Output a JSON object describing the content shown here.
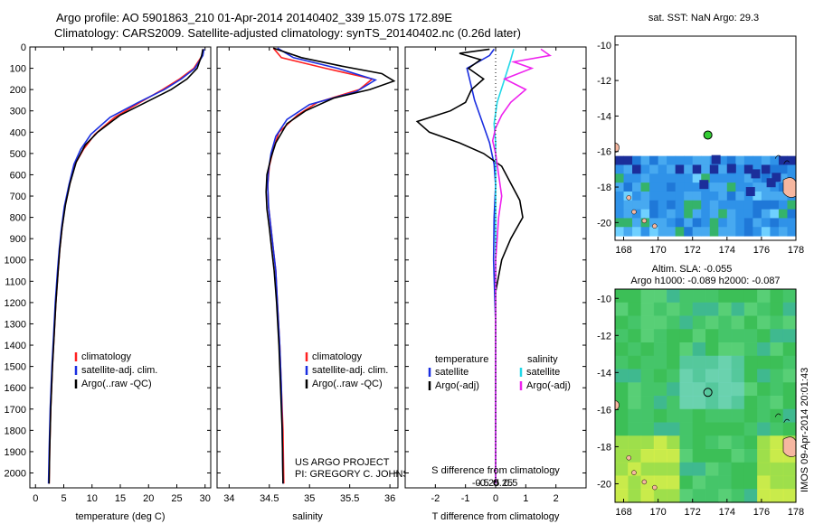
{
  "header": {
    "line1": "Argo profile: AO 5901863_210 01-Apr-2014 20140402_339 15.07S 172.89E",
    "line2": "Climatology: CARS2009. Satellite-adjusted climatology: synTS_20140402.nc (0.26d later)"
  },
  "colors": {
    "clim": "#ff2020",
    "sat": "#1a2ee0",
    "argo": "#000000",
    "sal_sat": "#22d8e8",
    "sal_argo": "#ee22ee",
    "sst_ocean": "#2f92e8",
    "land": "#f6b7a0"
  },
  "chart_data": [
    {
      "type": "line",
      "id": "temperature",
      "xlabel": "temperature (deg C)",
      "xlim": [
        -1,
        31
      ],
      "xticks": [
        0,
        5,
        10,
        15,
        20,
        25,
        30
      ],
      "ylim": [
        2070,
        0
      ],
      "yticks": [
        0,
        100,
        200,
        300,
        400,
        500,
        600,
        700,
        800,
        900,
        1000,
        1100,
        1200,
        1300,
        1400,
        1500,
        1600,
        1700,
        1800,
        1900,
        2000
      ],
      "series": [
        {
          "name": "climatology",
          "color": "#ff2020",
          "points": [
            [
              29.7,
              10
            ],
            [
              29.5,
              40
            ],
            [
              28.0,
              100
            ],
            [
              25.5,
              150
            ],
            [
              22.5,
              200
            ],
            [
              18.5,
              260
            ],
            [
              14.0,
              330
            ],
            [
              10.5,
              410
            ],
            [
              8.5,
              480
            ],
            [
              7.0,
              550
            ],
            [
              6.0,
              650
            ],
            [
              5.2,
              750
            ],
            [
              4.7,
              850
            ],
            [
              4.3,
              950
            ],
            [
              4.0,
              1050
            ],
            [
              3.6,
              1200
            ],
            [
              3.3,
              1350
            ],
            [
              3.0,
              1500
            ],
            [
              2.7,
              1700
            ],
            [
              2.5,
              1900
            ],
            [
              2.4,
              2050
            ]
          ]
        },
        {
          "name": "satellite-adj. clim.",
          "color": "#1a2ee0",
          "points": [
            [
              29.8,
              10
            ],
            [
              29.6,
              40
            ],
            [
              28.2,
              100
            ],
            [
              25.8,
              150
            ],
            [
              22.8,
              200
            ],
            [
              18.2,
              260
            ],
            [
              13.2,
              330
            ],
            [
              9.8,
              410
            ],
            [
              8.0,
              480
            ],
            [
              6.8,
              550
            ],
            [
              5.9,
              650
            ],
            [
              5.1,
              750
            ],
            [
              4.6,
              850
            ],
            [
              4.2,
              950
            ],
            [
              3.9,
              1050
            ],
            [
              3.5,
              1200
            ],
            [
              3.2,
              1350
            ],
            [
              2.9,
              1500
            ],
            [
              2.6,
              1700
            ],
            [
              2.4,
              1900
            ],
            [
              2.3,
              2050
            ]
          ]
        },
        {
          "name": "Argo(..raw -QC)",
          "color": "#000000",
          "points": [
            [
              29.6,
              10
            ],
            [
              29.4,
              40
            ],
            [
              28.6,
              100
            ],
            [
              26.8,
              150
            ],
            [
              24.0,
              200
            ],
            [
              19.5,
              260
            ],
            [
              15.0,
              320
            ],
            [
              11.0,
              400
            ],
            [
              8.8,
              460
            ],
            [
              7.2,
              540
            ],
            [
              6.1,
              640
            ],
            [
              5.3,
              740
            ],
            [
              4.7,
              850
            ],
            [
              4.3,
              950
            ],
            [
              4.0,
              1050
            ],
            [
              3.6,
              1200
            ],
            [
              3.3,
              1350
            ],
            [
              3.0,
              1500
            ],
            [
              2.7,
              1700
            ],
            [
              2.5,
              1900
            ],
            [
              2.4,
              2050
            ]
          ]
        }
      ],
      "legend": [
        "climatology",
        "satellite-adj. clim.",
        "Argo(..raw -QC)"
      ]
    },
    {
      "type": "line",
      "id": "salinity",
      "xlabel": "salinity",
      "xlim": [
        33.85,
        36.1
      ],
      "xticks": [
        34,
        34.5,
        35,
        35.5,
        36
      ],
      "ylim": [
        2070,
        0
      ],
      "series": [
        {
          "name": "climatology",
          "color": "#ff2020",
          "points": [
            [
              34.55,
              5
            ],
            [
              34.65,
              50
            ],
            [
              35.2,
              100
            ],
            [
              35.78,
              150
            ],
            [
              35.62,
              200
            ],
            [
              35.1,
              260
            ],
            [
              34.85,
              320
            ],
            [
              34.62,
              400
            ],
            [
              34.55,
              480
            ],
            [
              34.5,
              560
            ],
            [
              34.48,
              650
            ],
            [
              34.49,
              750
            ],
            [
              34.52,
              850
            ],
            [
              34.55,
              950
            ],
            [
              34.58,
              1050
            ],
            [
              34.6,
              1200
            ],
            [
              34.63,
              1400
            ],
            [
              34.65,
              1600
            ],
            [
              34.67,
              1800
            ],
            [
              34.68,
              2050
            ]
          ]
        },
        {
          "name": "satellite-adj. clim.",
          "color": "#1a2ee0",
          "points": [
            [
              34.6,
              5
            ],
            [
              34.8,
              50
            ],
            [
              35.35,
              100
            ],
            [
              35.82,
              155
            ],
            [
              35.58,
              210
            ],
            [
              35.0,
              270
            ],
            [
              34.72,
              340
            ],
            [
              34.58,
              420
            ],
            [
              34.52,
              500
            ],
            [
              34.49,
              580
            ],
            [
              34.48,
              650
            ],
            [
              34.49,
              750
            ],
            [
              34.52,
              850
            ],
            [
              34.55,
              950
            ],
            [
              34.58,
              1050
            ],
            [
              34.6,
              1200
            ],
            [
              34.63,
              1400
            ],
            [
              34.65,
              1600
            ],
            [
              34.66,
              1800
            ],
            [
              34.67,
              2050
            ]
          ]
        },
        {
          "name": "Argo(..raw -QC)",
          "color": "#000000",
          "points": [
            [
              34.55,
              5
            ],
            [
              34.9,
              50
            ],
            [
              35.4,
              90
            ],
            [
              35.9,
              125
            ],
            [
              36.05,
              160
            ],
            [
              35.75,
              200
            ],
            [
              35.3,
              240
            ],
            [
              34.95,
              300
            ],
            [
              34.72,
              360
            ],
            [
              34.58,
              450
            ],
            [
              34.52,
              520
            ],
            [
              34.47,
              600
            ],
            [
              34.46,
              680
            ],
            [
              34.47,
              760
            ],
            [
              34.5,
              850
            ],
            [
              34.53,
              950
            ],
            [
              34.56,
              1050
            ],
            [
              34.59,
              1200
            ],
            [
              34.62,
              1400
            ],
            [
              34.64,
              1600
            ],
            [
              34.66,
              1800
            ],
            [
              34.67,
              2050
            ]
          ]
        }
      ],
      "legend": [
        "climatology",
        "satellite-adj. clim.",
        "Argo(..raw -QC)"
      ],
      "credit1": "US ARGO PROJECT",
      "credit2": "PI: GREGORY C. JOHNSON"
    },
    {
      "type": "line",
      "id": "differences",
      "xlabel": "T difference from climatology",
      "xlabel_top": "S difference from climatology",
      "xlim": [
        -3,
        3
      ],
      "xticks": [
        -2,
        -1,
        0,
        1,
        2
      ],
      "sticks": [
        -0.5,
        -0.25,
        0,
        0.25,
        0.5
      ],
      "sticklabels": [
        "-0.5",
        "-0.25",
        "0",
        "0.25",
        "0.5"
      ],
      "ylim": [
        2070,
        0
      ],
      "series": [
        {
          "name": "temperature satellite",
          "color": "#1a2ee0",
          "points": [
            [
              -0.05,
              10
            ],
            [
              -0.2,
              40
            ],
            [
              -0.95,
              100
            ],
            [
              -0.85,
              160
            ],
            [
              -0.7,
              250
            ],
            [
              -0.45,
              350
            ],
            [
              -0.2,
              450
            ],
            [
              -0.05,
              550
            ],
            [
              0.0,
              650
            ],
            [
              -0.05,
              800
            ],
            [
              -0.07,
              1000
            ],
            [
              0.0,
              1300
            ],
            [
              0.0,
              1600
            ],
            [
              0.0,
              2050
            ]
          ]
        },
        {
          "name": "temperature Argo(-adj)",
          "color": "#000000",
          "points": [
            [
              -0.2,
              10
            ],
            [
              -1.2,
              30
            ],
            [
              -0.5,
              60
            ],
            [
              -0.9,
              100
            ],
            [
              -0.4,
              150
            ],
            [
              -0.8,
              200
            ],
            [
              -1.0,
              260
            ],
            [
              -1.5,
              300
            ],
            [
              -2.6,
              350
            ],
            [
              -2.2,
              400
            ],
            [
              -1.2,
              450
            ],
            [
              -0.4,
              500
            ],
            [
              0.2,
              560
            ],
            [
              0.5,
              640
            ],
            [
              0.8,
              720
            ],
            [
              0.9,
              800
            ],
            [
              0.5,
              900
            ],
            [
              0.2,
              1000
            ],
            [
              0.0,
              1150
            ],
            [
              0.0,
              1300
            ],
            [
              0.0,
              1600
            ],
            [
              0.0,
              2050
            ]
          ]
        },
        {
          "name": "salinity satellite",
          "color": "#22d8e8",
          "points": [
            [
              0.6,
              10
            ],
            [
              0.5,
              60
            ],
            [
              0.3,
              150
            ],
            [
              0.05,
              260
            ],
            [
              -0.05,
              360
            ],
            [
              0.0,
              450
            ],
            [
              0.0,
              600
            ],
            [
              0.0,
              800
            ],
            [
              0.0,
              2050
            ]
          ]
        },
        {
          "name": "salinity Argo(-adj)",
          "color": "#ee22ee",
          "points": [
            [
              1.5,
              10
            ],
            [
              1.8,
              40
            ],
            [
              0.6,
              70
            ],
            [
              1.2,
              100
            ],
            [
              0.3,
              150
            ],
            [
              1.0,
              200
            ],
            [
              0.5,
              260
            ],
            [
              0.2,
              320
            ],
            [
              0.0,
              380
            ],
            [
              -0.1,
              440
            ],
            [
              0.0,
              500
            ],
            [
              0.1,
              600
            ],
            [
              0.2,
              700
            ],
            [
              0.1,
              800
            ],
            [
              0.05,
              900
            ],
            [
              0.0,
              1000
            ],
            [
              0.0,
              1300
            ],
            [
              0.0,
              2050
            ]
          ]
        }
      ],
      "legend_title_left": "temperature",
      "legend_title_right": "salinity",
      "legend_left": [
        "satellite",
        "Argo(-adj)"
      ],
      "legend_right": [
        "satellite",
        "Argo(-adj)"
      ]
    },
    {
      "type": "heatmap",
      "id": "sst_map",
      "title": "sat. SST: NaN Argo: 29.3",
      "xlim": [
        167.5,
        178
      ],
      "ylim": [
        -21,
        -9.5
      ],
      "xticks": [
        168,
        170,
        172,
        174,
        176,
        178
      ],
      "yticks": [
        -10,
        -12,
        -14,
        -16,
        -18,
        -20
      ],
      "argo_position": [
        172.89,
        -15.07
      ]
    },
    {
      "type": "heatmap",
      "id": "sla_map",
      "title1": "Altim. SLA: -0.055",
      "title2": "Argo h1000: -0.089 h2000: -0.087",
      "xlim": [
        167.5,
        178
      ],
      "ylim": [
        -21,
        -9.5
      ],
      "xticks": [
        168,
        170,
        172,
        174,
        176,
        178
      ],
      "yticks": [
        -10,
        -12,
        -14,
        -16,
        -18,
        -20
      ],
      "argo_position": [
        172.89,
        -15.07
      ]
    }
  ],
  "footer": {
    "stamp": "IMOS 09-Apr-2014 20:01:43"
  }
}
